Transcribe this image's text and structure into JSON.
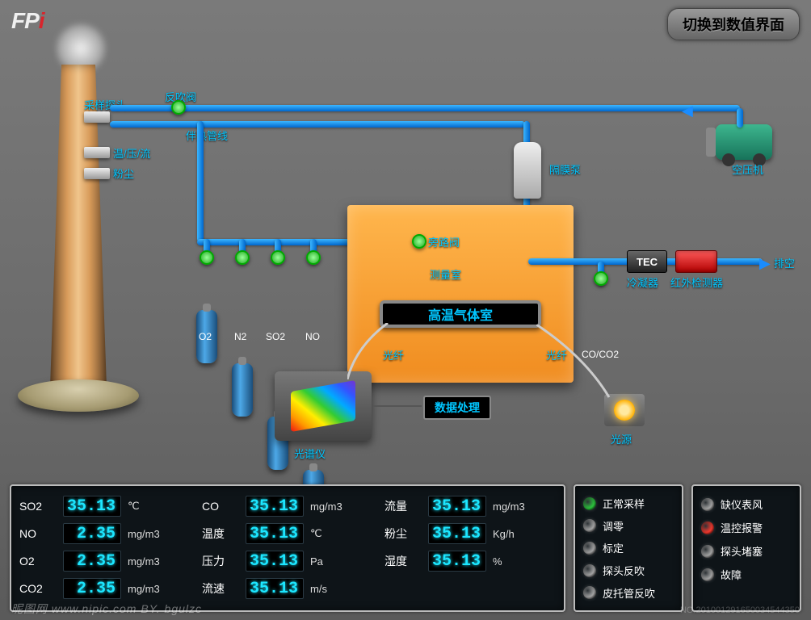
{
  "logo": {
    "text": "FPI"
  },
  "switch_button": "切换到数值界面",
  "diagram_labels": {
    "sample_probe": "采样探头",
    "blowback_valve": "反吹阀",
    "temp_press_flow": "温/压/流",
    "dust": "粉尘",
    "heated_line": "伴热管线",
    "diaphragm_pump": "隔膜泵",
    "measurement_chamber_label": "测量室",
    "hot_gas_cell": "高温气体室",
    "optical_fiber": "光纤",
    "spectrometer": "光谱仪",
    "data_processing": "数据处理",
    "light_source": "光源",
    "condenser": "冷凝器",
    "tec": "TEC",
    "ir_detector": "红外检测器",
    "exhaust": "排空",
    "compressor": "空压机",
    "co_co2_cyl": "CO/CO2",
    "bypass_valve": "旁路阀"
  },
  "cylinders": [
    {
      "label": "O2"
    },
    {
      "label": "N2"
    },
    {
      "label": "SO2"
    },
    {
      "label": "NO"
    }
  ],
  "readings": [
    {
      "label": "SO2",
      "value": "35.13",
      "unit": "℃"
    },
    {
      "label": "NO",
      "value": "2.35",
      "unit": "mg/m3"
    },
    {
      "label": "O2",
      "value": "2.35",
      "unit": "mg/m3"
    },
    {
      "label": "CO2",
      "value": "2.35",
      "unit": "mg/m3"
    },
    {
      "label": "CO",
      "value": "35.13",
      "unit": "mg/m3"
    },
    {
      "label": "温度",
      "value": "35.13",
      "unit": "℃"
    },
    {
      "label": "压力",
      "value": "35.13",
      "unit": "Pa"
    },
    {
      "label": "流速",
      "value": "35.13",
      "unit": "m/s"
    },
    {
      "label": "流量",
      "value": "35.13",
      "unit": "mg/m3"
    },
    {
      "label": "粉尘",
      "value": "35.13",
      "unit": "Kg/h"
    },
    {
      "label": "湿度",
      "value": "35.13",
      "unit": "%"
    }
  ],
  "status_left": [
    {
      "label": "正常采样",
      "color": "#2ecc40"
    },
    {
      "label": "调零",
      "color": "#aaaaaa"
    },
    {
      "label": "标定",
      "color": "#aaaaaa"
    },
    {
      "label": "探头反吹",
      "color": "#aaaaaa"
    },
    {
      "label": "皮托管反吹",
      "color": "#aaaaaa"
    }
  ],
  "status_right": [
    {
      "label": "缺仪表风",
      "color": "#aaaaaa"
    },
    {
      "label": "温控报警",
      "color": "#ff3b30"
    },
    {
      "label": "探头堵塞",
      "color": "#aaaaaa"
    },
    {
      "label": "故障",
      "color": "#aaaaaa"
    }
  ],
  "colors": {
    "pipe": "#1a8cff",
    "chamber": "#f79a2a",
    "led_value": "#1ce6ff"
  },
  "watermark_left": "昵图网  www.nipic.com   BY. bgulzc",
  "watermark_right": "NO.201001291650034544350"
}
